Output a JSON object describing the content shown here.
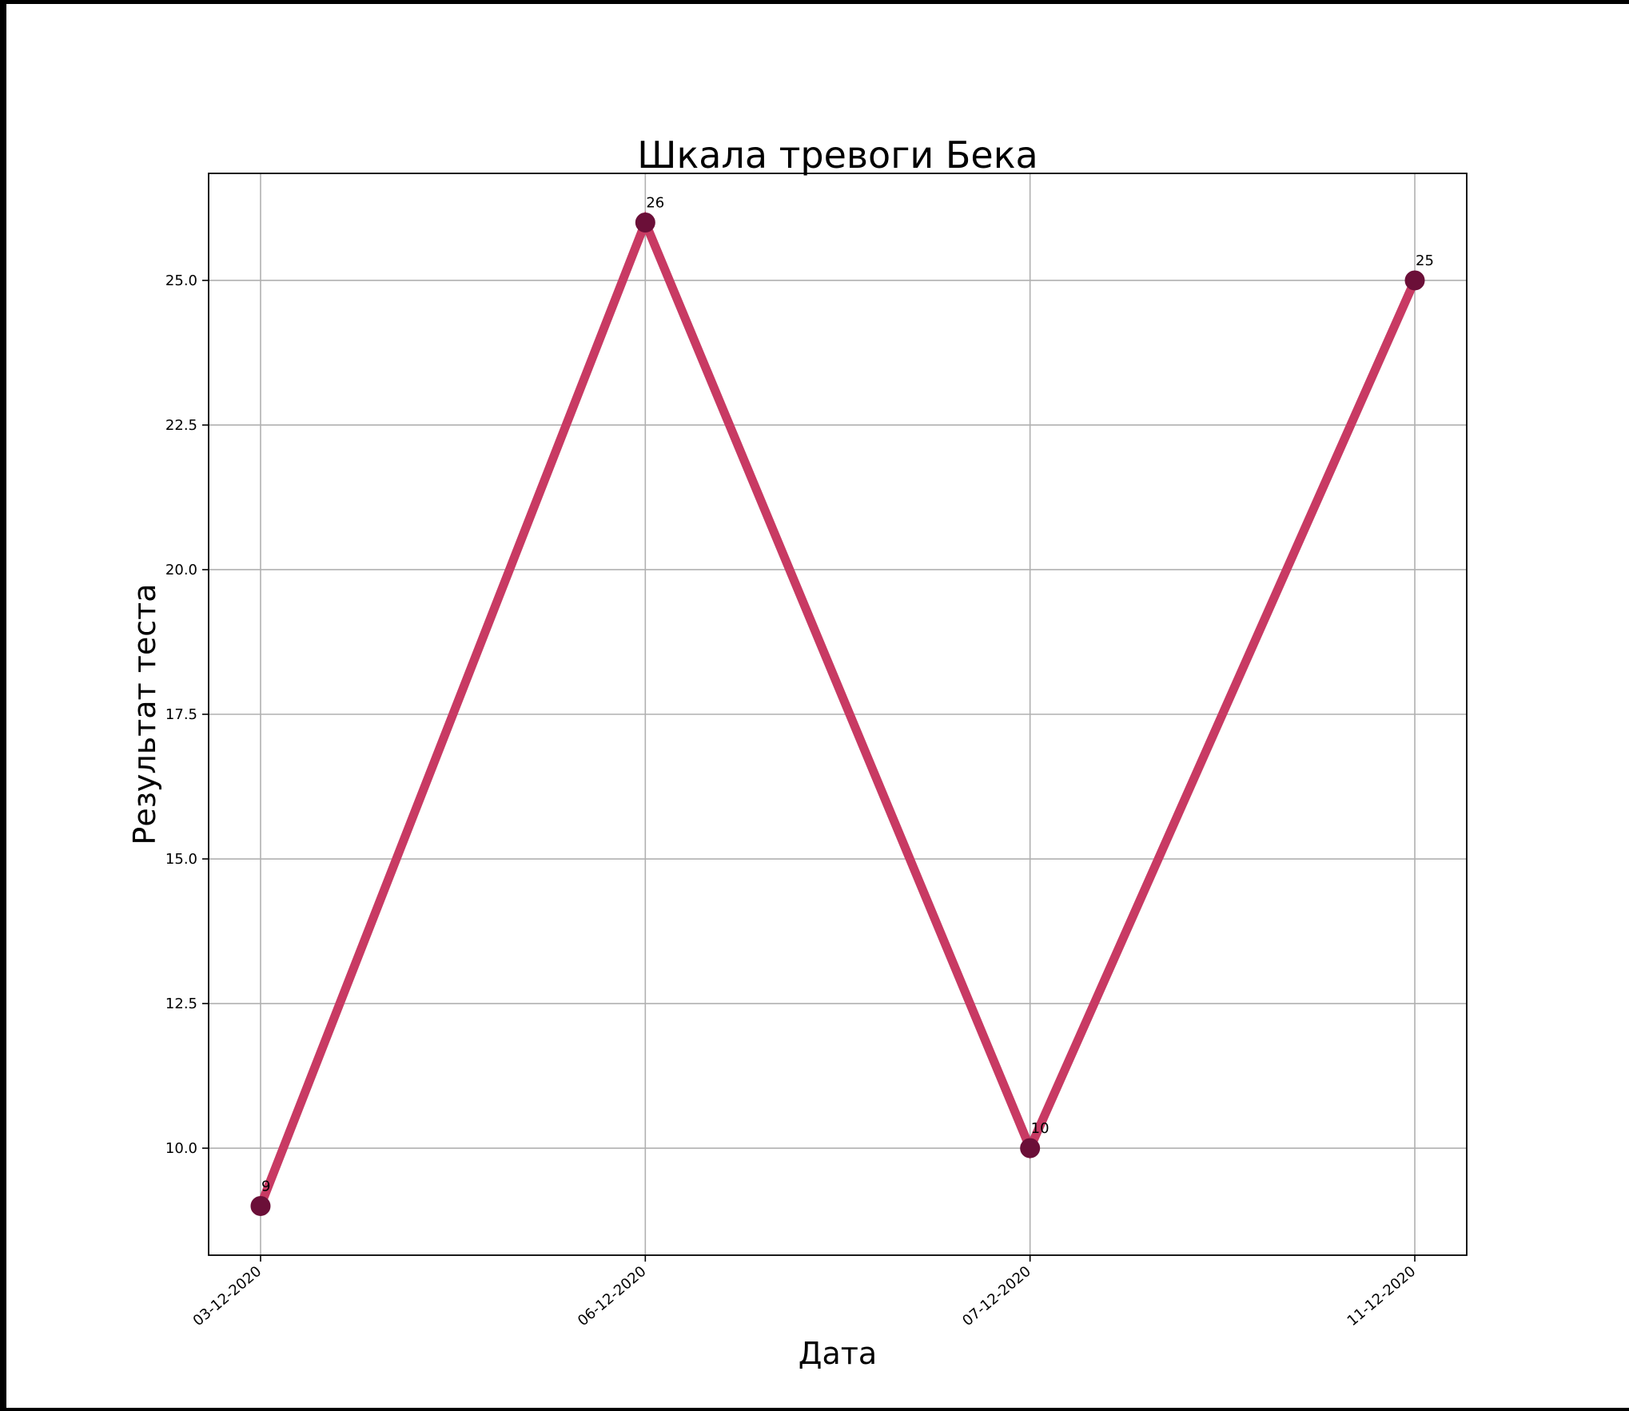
{
  "chart_data": {
    "type": "line",
    "title": "Шкала тревоги Бека",
    "xlabel": "Дата",
    "ylabel": "Результат теста",
    "categories": [
      "03-12-2020",
      "06-12-2020",
      "07-12-2020",
      "11-12-2020"
    ],
    "values": [
      9,
      26,
      10,
      25
    ],
    "data_labels": [
      "9",
      "26",
      "10",
      "25"
    ],
    "ylim": [
      8.15,
      26.85
    ],
    "yticks": [
      10.0,
      12.5,
      15.0,
      17.5,
      20.0,
      22.5,
      25.0
    ],
    "ytick_labels": [
      "10.0",
      "12.5",
      "15.0",
      "17.5",
      "20.0",
      "22.5",
      "25.0"
    ],
    "grid": true,
    "legend": "none",
    "line_color": "#c83a63",
    "marker_color": "#6b0f38"
  }
}
